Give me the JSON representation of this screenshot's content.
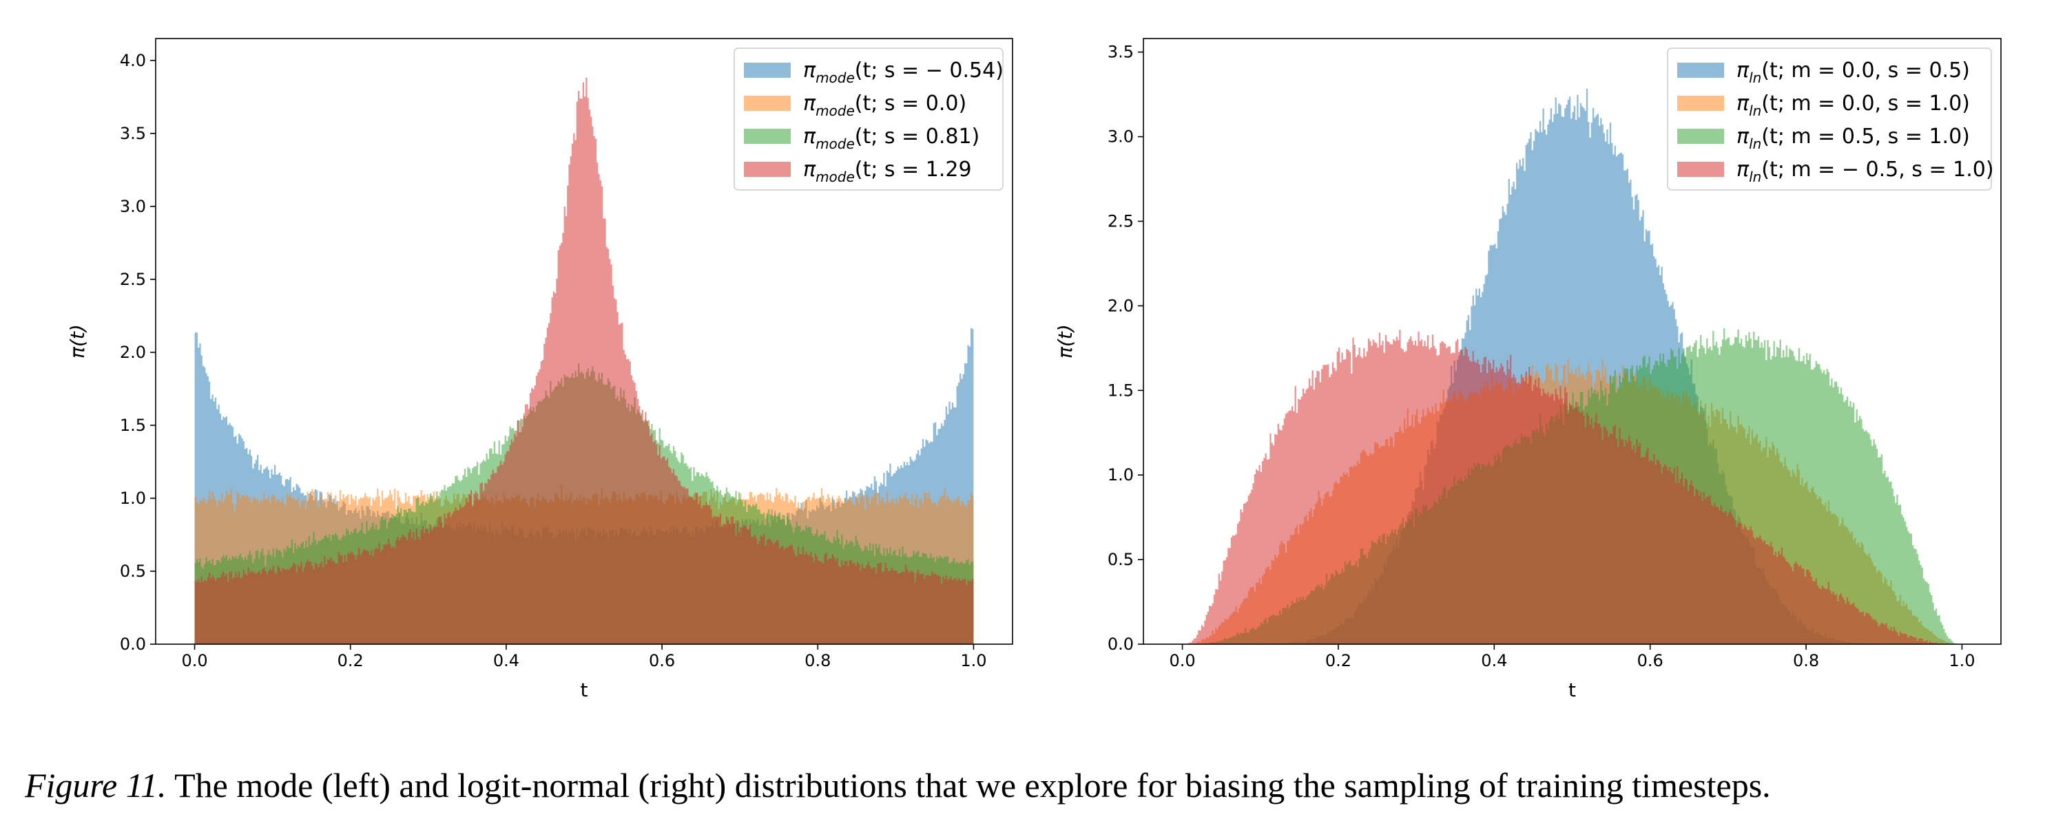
{
  "caption": {
    "label": "Figure 11.",
    "text": " The mode (left) and logit-normal (right) distributions that we explore for biasing the sampling of training timesteps."
  },
  "chart_data": [
    {
      "type": "histogram",
      "xlabel": "t",
      "ylabel": "π(t)",
      "xlim": [
        -0.05,
        1.05
      ],
      "ylim": [
        0,
        4.15
      ],
      "xticks": [
        0.0,
        0.2,
        0.4,
        0.6,
        0.8,
        1.0
      ],
      "xtick_labels": [
        "0.0",
        "0.2",
        "0.4",
        "0.6",
        "0.8",
        "1.0"
      ],
      "yticks": [
        0.0,
        0.5,
        1.0,
        1.5,
        2.0,
        2.5,
        3.0,
        3.5,
        4.0
      ],
      "ytick_labels": [
        "0.0",
        "0.5",
        "1.0",
        "1.5",
        "2.0",
        "2.5",
        "3.0",
        "3.5",
        "4.0"
      ],
      "legend_position": "top-right",
      "grid": false,
      "bins": 500,
      "series": [
        {
          "name": "π_mode(t; s = −0.54)",
          "family": "mode",
          "s": -0.54,
          "color": "#1f77b4"
        },
        {
          "name": "π_mode(t; s = 0.0)",
          "family": "mode",
          "s": 0.0,
          "color": "#ff7f0e"
        },
        {
          "name": "π_mode(t; s = 0.81)",
          "family": "mode",
          "s": 0.81,
          "color": "#2ca02c"
        },
        {
          "name": "π_mode(t; s = 1.29",
          "family": "mode",
          "s": 1.29,
          "color": "#d62728"
        }
      ],
      "legend": [
        {
          "pre": "π",
          "sub": "mode",
          "post": "(t; s = − 0.54)"
        },
        {
          "pre": "π",
          "sub": "mode",
          "post": "(t; s = 0.0)"
        },
        {
          "pre": "π",
          "sub": "mode",
          "post": "(t; s = 0.81)"
        },
        {
          "pre": "π",
          "sub": "mode",
          "post": "(t; s = 1.29"
        }
      ]
    },
    {
      "type": "histogram",
      "xlabel": "t",
      "ylabel": "π(t)",
      "xlim": [
        -0.05,
        1.05
      ],
      "ylim": [
        0,
        3.58
      ],
      "xticks": [
        0.0,
        0.2,
        0.4,
        0.6,
        0.8,
        1.0
      ],
      "xtick_labels": [
        "0.0",
        "0.2",
        "0.4",
        "0.6",
        "0.8",
        "1.0"
      ],
      "yticks": [
        0.0,
        0.5,
        1.0,
        1.5,
        2.0,
        2.5,
        3.0,
        3.5
      ],
      "ytick_labels": [
        "0.0",
        "0.5",
        "1.0",
        "1.5",
        "2.0",
        "2.5",
        "3.0",
        "3.5"
      ],
      "legend_position": "top-right",
      "grid": false,
      "bins": 500,
      "series": [
        {
          "name": "π_ln(t; m = 0.0, s = 0.5)",
          "family": "logit-normal",
          "m": 0.0,
          "s": 0.5,
          "color": "#1f77b4"
        },
        {
          "name": "π_ln(t; m = 0.0, s = 1.0)",
          "family": "logit-normal",
          "m": 0.0,
          "s": 1.0,
          "color": "#ff7f0e"
        },
        {
          "name": "π_ln(t; m = 0.5, s = 1.0)",
          "family": "logit-normal",
          "m": 0.5,
          "s": 1.0,
          "color": "#2ca02c"
        },
        {
          "name": "π_ln(t; m = −0.5, s = 1.0)",
          "family": "logit-normal",
          "m": -0.5,
          "s": 1.0,
          "color": "#d62728"
        }
      ],
      "legend": [
        {
          "pre": "π",
          "sub": "ln",
          "post": "(t; m = 0.0, s = 0.5)"
        },
        {
          "pre": "π",
          "sub": "ln",
          "post": "(t; m = 0.0, s = 1.0)"
        },
        {
          "pre": "π",
          "sub": "ln",
          "post": "(t; m = 0.5, s = 1.0)"
        },
        {
          "pre": "π",
          "sub": "ln",
          "post": "(t; m = − 0.5, s = 1.0)"
        }
      ]
    }
  ]
}
